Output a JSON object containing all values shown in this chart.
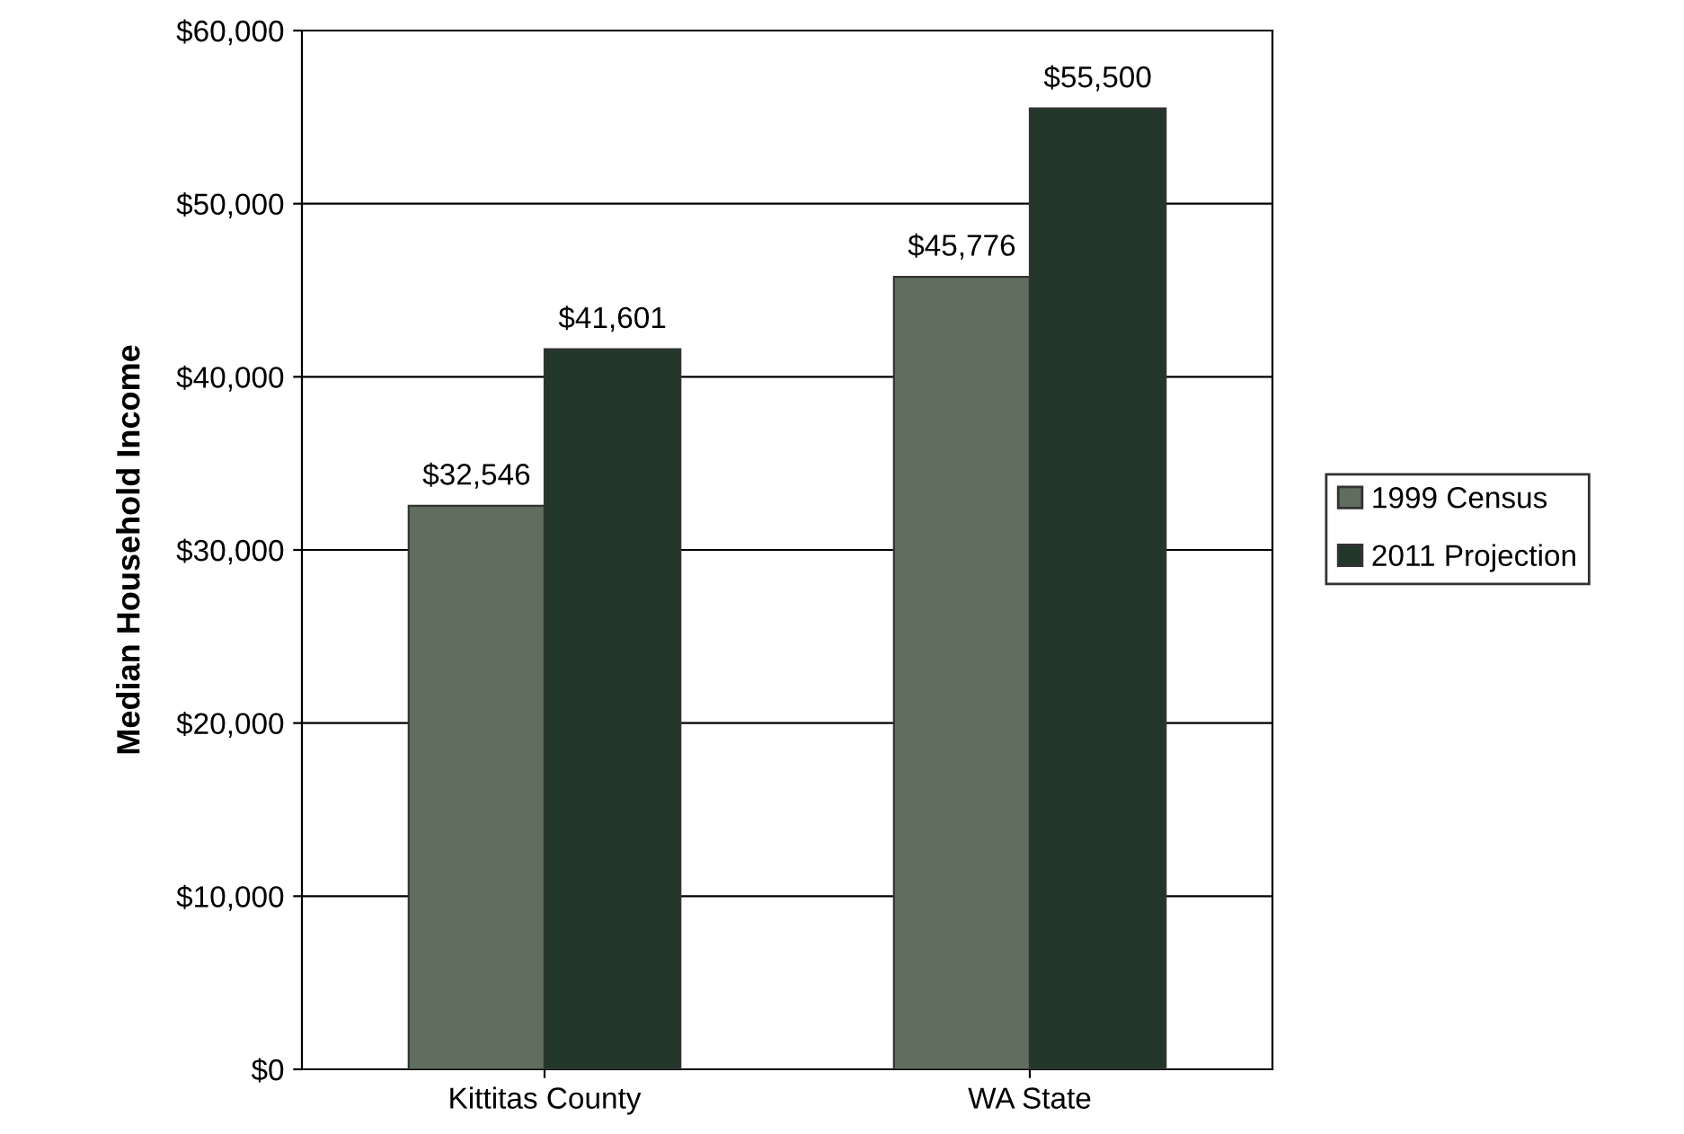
{
  "chart_data": {
    "type": "bar",
    "ylabel": "Median Household Income",
    "categories": [
      "Kittitas County",
      "WA State"
    ],
    "series": [
      {
        "name": "1999 Census",
        "color": "#5f6e5f",
        "values": [
          32546,
          45776
        ],
        "value_labels": [
          "$32,546",
          "$45,776"
        ]
      },
      {
        "name": "2011 Projection",
        "color": "#22372a",
        "values": [
          41601,
          55500
        ],
        "value_labels": [
          "$41,601",
          "$55,500"
        ]
      }
    ],
    "ylim": [
      0,
      60000
    ],
    "yticks": [
      {
        "value": 0,
        "label": "$0"
      },
      {
        "value": 10000,
        "label": "$10,000"
      },
      {
        "value": 20000,
        "label": "$20,000"
      },
      {
        "value": 30000,
        "label": "$30,000"
      },
      {
        "value": 40000,
        "label": "$40,000"
      },
      {
        "value": 50000,
        "label": "$50,000"
      },
      {
        "value": 60000,
        "label": "$60,000"
      }
    ],
    "grid": "y",
    "legend": "right"
  }
}
